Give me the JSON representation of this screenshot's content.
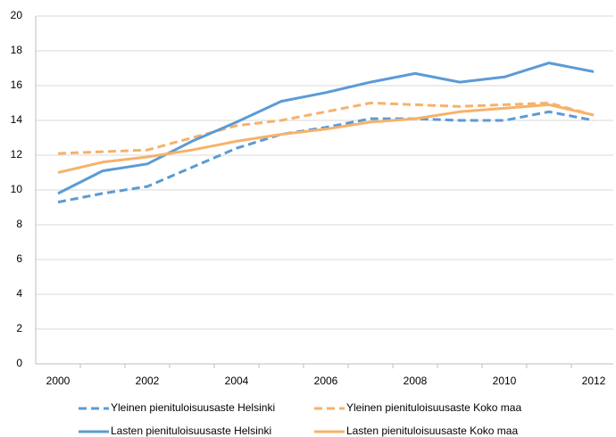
{
  "chart_data": {
    "type": "line",
    "x": [
      2000,
      2001,
      2002,
      2003,
      2004,
      2005,
      2006,
      2007,
      2008,
      2009,
      2010,
      2011,
      2012
    ],
    "xlim": [
      1999.5,
      2012.5
    ],
    "xticks": [
      2000,
      2002,
      2004,
      2006,
      2008,
      2010,
      2012
    ],
    "ylim": [
      0,
      20
    ],
    "yticks": [
      0,
      2,
      4,
      6,
      8,
      10,
      12,
      14,
      16,
      18,
      20
    ],
    "grid": true,
    "legend": "bottom",
    "series": [
      {
        "name": "Yleinen pienituloisuusaste Helsinki",
        "color": "#5b9bd5",
        "dashed": true,
        "values": [
          9.3,
          9.8,
          10.2,
          11.3,
          12.4,
          13.2,
          13.6,
          14.1,
          14.1,
          14.0,
          14.0,
          14.5,
          14.0
        ]
      },
      {
        "name": "Yleinen pienituloisuusaste Koko maa",
        "color": "#f6b26b",
        "dashed": true,
        "values": [
          12.1,
          12.2,
          12.3,
          13.0,
          13.7,
          14.0,
          14.5,
          15.0,
          14.9,
          14.8,
          14.9,
          15.0,
          14.3
        ]
      },
      {
        "name": "Lasten pienituloisuusaste Helsinki",
        "color": "#5b9bd5",
        "dashed": false,
        "values": [
          9.8,
          11.1,
          11.5,
          12.8,
          13.9,
          15.1,
          15.6,
          16.2,
          16.7,
          16.2,
          16.5,
          17.3,
          16.8
        ]
      },
      {
        "name": "Lasten pienituloisuusaste Koko maa",
        "color": "#f6b26b",
        "dashed": false,
        "values": [
          11.0,
          11.6,
          11.9,
          12.3,
          12.8,
          13.2,
          13.5,
          13.9,
          14.1,
          14.5,
          14.7,
          14.9,
          14.3
        ]
      }
    ]
  }
}
